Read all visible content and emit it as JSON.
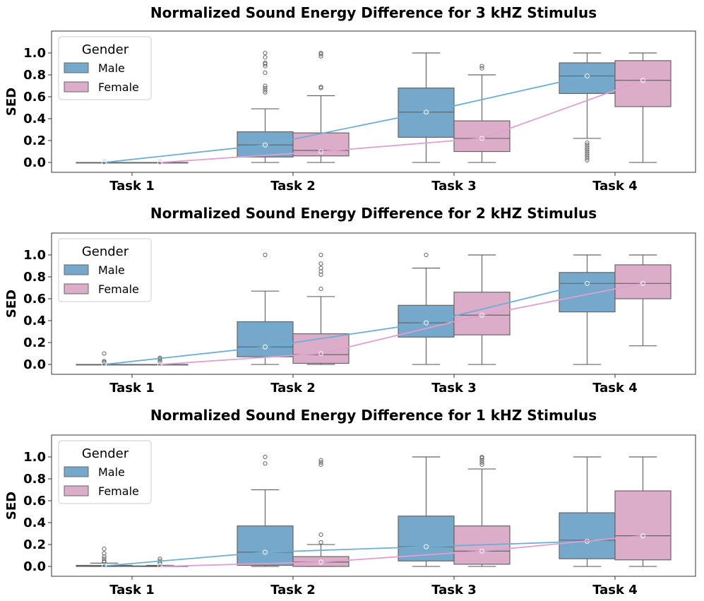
{
  "chart_data": [
    {
      "type": "box",
      "title": "Normalized Sound Energy Difference for 3 kHZ Stimulus",
      "ylabel": "SED",
      "xlabel": "",
      "ylim": [
        -0.09,
        1.2
      ],
      "yticks": [
        "0.0",
        "0.2",
        "0.4",
        "0.6",
        "0.8",
        "1.0"
      ],
      "categories": [
        "Task 1",
        "Task 2",
        "Task 3",
        "Task 4"
      ],
      "legend": {
        "title": "Gender",
        "entries": [
          "Male",
          "Female"
        ],
        "position": "upper-left"
      },
      "colors": {
        "Male": "#76a8cc",
        "Female": "#dcadc9",
        "Male_line": "#6baed6",
        "Female_line": "#e0a0d0"
      },
      "series": [
        {
          "name": "Male",
          "boxes": [
            {
              "whislo": 0.0,
              "q1": 0.0,
              "med": 0.0,
              "q3": 0.0,
              "whishi": 0.0,
              "mean": 0.0,
              "fliers": [
                0.005
              ]
            },
            {
              "whislo": 0.0,
              "q1": 0.05,
              "med": 0.16,
              "q3": 0.28,
              "whishi": 0.49,
              "mean": 0.16,
              "fliers": [
                0.64,
                0.66,
                0.68,
                0.7,
                0.82,
                0.88,
                0.9,
                0.91,
                0.96,
                1.0
              ]
            },
            {
              "whislo": 0.0,
              "q1": 0.23,
              "med": 0.46,
              "q3": 0.68,
              "whishi": 1.0,
              "mean": 0.46,
              "fliers": []
            },
            {
              "whislo": 0.22,
              "q1": 0.63,
              "med": 0.79,
              "q3": 0.91,
              "whishi": 1.0,
              "mean": 0.79,
              "fliers": [
                0.02,
                0.04,
                0.06,
                0.08,
                0.1,
                0.12,
                0.14,
                0.16,
                0.18
              ]
            }
          ]
        },
        {
          "name": "Female",
          "boxes": [
            {
              "whislo": 0.0,
              "q1": 0.0,
              "med": 0.0,
              "q3": 0.0,
              "whishi": 0.0,
              "mean": 0.0,
              "fliers": [
                0.005
              ]
            },
            {
              "whislo": 0.0,
              "q1": 0.06,
              "med": 0.11,
              "q3": 0.27,
              "whishi": 0.61,
              "mean": 0.1,
              "fliers": [
                0.68,
                0.69,
                0.97,
                0.99,
                1.0
              ]
            },
            {
              "whislo": 0.0,
              "q1": 0.1,
              "med": 0.22,
              "q3": 0.38,
              "whishi": 0.8,
              "mean": 0.22,
              "fliers": [
                0.86,
                0.88
              ]
            },
            {
              "whislo": 0.0,
              "q1": 0.51,
              "med": 0.75,
              "q3": 0.93,
              "whishi": 1.0,
              "mean": 0.75,
              "fliers": []
            }
          ]
        }
      ]
    },
    {
      "type": "box",
      "title": "Normalized Sound Energy Difference for 2 kHZ Stimulus",
      "ylabel": "SED",
      "xlabel": "",
      "ylim": [
        -0.09,
        1.2
      ],
      "yticks": [
        "0.0",
        "0.2",
        "0.4",
        "0.6",
        "0.8",
        "1.0"
      ],
      "categories": [
        "Task 1",
        "Task 2",
        "Task 3",
        "Task 4"
      ],
      "legend": {
        "title": "Gender",
        "entries": [
          "Male",
          "Female"
        ],
        "position": "upper-left"
      },
      "colors": {
        "Male": "#76a8cc",
        "Female": "#dcadc9",
        "Male_line": "#6baed6",
        "Female_line": "#e0a0d0"
      },
      "series": [
        {
          "name": "Male",
          "boxes": [
            {
              "whislo": 0.0,
              "q1": 0.0,
              "med": 0.0,
              "q3": 0.0,
              "whishi": 0.0,
              "mean": 0.0,
              "fliers": [
                0.01,
                0.02,
                0.03,
                0.1
              ]
            },
            {
              "whislo": 0.0,
              "q1": 0.07,
              "med": 0.16,
              "q3": 0.39,
              "whishi": 0.67,
              "mean": 0.16,
              "fliers": [
                1.0
              ]
            },
            {
              "whislo": 0.0,
              "q1": 0.25,
              "med": 0.38,
              "q3": 0.54,
              "whishi": 0.88,
              "mean": 0.38,
              "fliers": [
                1.0
              ]
            },
            {
              "whislo": 0.0,
              "q1": 0.48,
              "med": 0.74,
              "q3": 0.84,
              "whishi": 1.0,
              "mean": 0.74,
              "fliers": []
            }
          ]
        },
        {
          "name": "Female",
          "boxes": [
            {
              "whislo": 0.0,
              "q1": 0.0,
              "med": 0.0,
              "q3": 0.0,
              "whishi": 0.0,
              "mean": 0.0,
              "fliers": [
                0.01,
                0.03,
                0.05,
                0.06
              ]
            },
            {
              "whislo": 0.0,
              "q1": 0.01,
              "med": 0.09,
              "q3": 0.28,
              "whishi": 0.62,
              "mean": 0.1,
              "fliers": [
                0.69,
                0.82,
                0.85,
                0.88,
                0.92,
                1.0
              ]
            },
            {
              "whislo": 0.0,
              "q1": 0.27,
              "med": 0.45,
              "q3": 0.66,
              "whishi": 1.0,
              "mean": 0.45,
              "fliers": []
            },
            {
              "whislo": 0.17,
              "q1": 0.6,
              "med": 0.74,
              "q3": 0.91,
              "whishi": 1.0,
              "mean": 0.74,
              "fliers": []
            }
          ]
        }
      ]
    },
    {
      "type": "box",
      "title": "Normalized Sound Energy Difference for 1 kHZ Stimulus",
      "ylabel": "SED",
      "xlabel": "",
      "ylim": [
        -0.09,
        1.2
      ],
      "yticks": [
        "0.0",
        "0.2",
        "0.4",
        "0.6",
        "0.8",
        "1.0"
      ],
      "categories": [
        "Task 1",
        "Task 2",
        "Task 3",
        "Task 4"
      ],
      "legend": {
        "title": "Gender",
        "entries": [
          "Male",
          "Female"
        ],
        "position": "upper-left"
      },
      "colors": {
        "Male": "#76a8cc",
        "Female": "#dcadc9",
        "Male_line": "#6baed6",
        "Female_line": "#e0a0d0"
      },
      "series": [
        {
          "name": "Male",
          "boxes": [
            {
              "whislo": 0.0,
              "q1": 0.0,
              "med": 0.005,
              "q3": 0.01,
              "whishi": 0.03,
              "mean": 0.005,
              "fliers": [
                0.04,
                0.05,
                0.07,
                0.09,
                0.12,
                0.16
              ]
            },
            {
              "whislo": 0.0,
              "q1": 0.01,
              "med": 0.13,
              "q3": 0.37,
              "whishi": 0.7,
              "mean": 0.13,
              "fliers": [
                0.94,
                1.0
              ]
            },
            {
              "whislo": 0.0,
              "q1": 0.05,
              "med": 0.18,
              "q3": 0.46,
              "whishi": 1.0,
              "mean": 0.18,
              "fliers": []
            },
            {
              "whislo": 0.0,
              "q1": 0.07,
              "med": 0.24,
              "q3": 0.49,
              "whishi": 1.0,
              "mean": 0.23,
              "fliers": []
            }
          ]
        },
        {
          "name": "Female",
          "boxes": [
            {
              "whislo": 0.0,
              "q1": 0.0,
              "med": 0.0,
              "q3": 0.005,
              "whishi": 0.01,
              "mean": 0.0,
              "fliers": [
                0.03,
                0.05,
                0.07
              ]
            },
            {
              "whislo": 0.0,
              "q1": 0.0,
              "med": 0.04,
              "q3": 0.09,
              "whishi": 0.2,
              "mean": 0.04,
              "fliers": [
                0.22,
                0.29,
                0.93,
                0.95,
                0.97
              ]
            },
            {
              "whislo": 0.0,
              "q1": 0.02,
              "med": 0.14,
              "q3": 0.37,
              "whishi": 0.89,
              "mean": 0.14,
              "fliers": [
                0.93,
                0.95,
                0.97,
                0.99,
                1.0
              ]
            },
            {
              "whislo": 0.0,
              "q1": 0.06,
              "med": 0.28,
              "q3": 0.69,
              "whishi": 1.0,
              "mean": 0.28,
              "fliers": []
            }
          ]
        }
      ]
    }
  ]
}
